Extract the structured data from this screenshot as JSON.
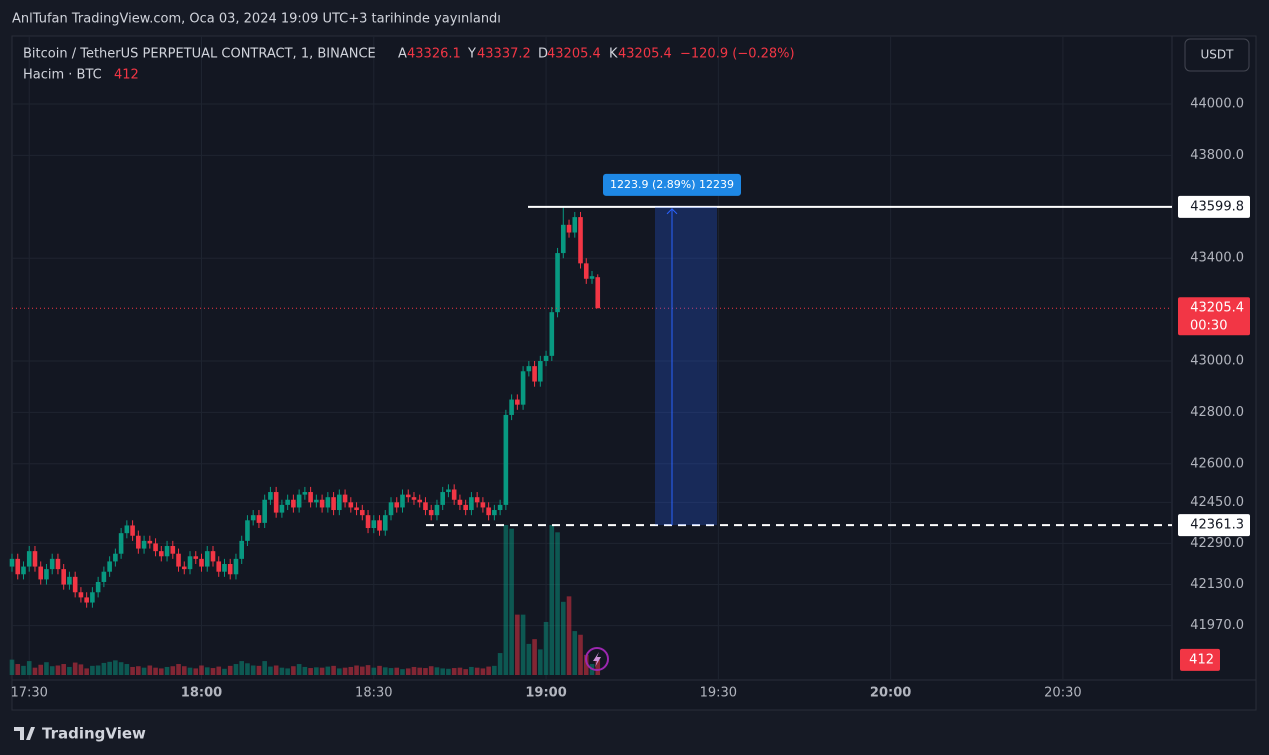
{
  "header": {
    "published": "AnlTufan TradingView.com, Oca 03, 2024 19:09 UTC+3 tarihinde yayınlandı",
    "currency": "USDT"
  },
  "chart_data": {
    "type": "candlestick",
    "title": "Bitcoin / TetherUS PERPETUAL CONTRACT, 1, BINANCE",
    "ohlc_letters": [
      "A",
      "Y",
      "D",
      "K"
    ],
    "change": "−120.9 (−0.28%)",
    "volume_label": "Hacim · BTC",
    "x": [
      "17:27",
      "17:28",
      "17:29",
      "17:30",
      "17:31",
      "17:32",
      "17:33",
      "17:34",
      "17:35",
      "17:36",
      "17:37",
      "17:38",
      "17:39",
      "17:40",
      "17:41",
      "17:42",
      "17:43",
      "17:44",
      "17:45",
      "17:46",
      "17:47",
      "17:48",
      "17:49",
      "17:50",
      "17:51",
      "17:52",
      "17:53",
      "17:54",
      "17:55",
      "17:56",
      "17:57",
      "17:58",
      "17:59",
      "18:00",
      "18:01",
      "18:02",
      "18:03",
      "18:04",
      "18:05",
      "18:06",
      "18:07",
      "18:08",
      "18:09",
      "18:10",
      "18:11",
      "18:12",
      "18:13",
      "18:14",
      "18:15",
      "18:16",
      "18:17",
      "18:18",
      "18:19",
      "18:20",
      "18:21",
      "18:22",
      "18:23",
      "18:24",
      "18:25",
      "18:26",
      "18:27",
      "18:28",
      "18:29",
      "18:30",
      "18:31",
      "18:32",
      "18:33",
      "18:34",
      "18:35",
      "18:36",
      "18:37",
      "18:38",
      "18:39",
      "18:40",
      "18:41",
      "18:42",
      "18:43",
      "18:44",
      "18:45",
      "18:46",
      "18:47",
      "18:48",
      "18:49",
      "18:50",
      "18:51",
      "18:52",
      "18:53",
      "18:54",
      "18:55",
      "18:56",
      "18:57",
      "18:58",
      "18:59",
      "19:00",
      "19:01",
      "19:02",
      "19:03",
      "19:04",
      "19:05",
      "19:06",
      "19:07",
      "19:08",
      "19:09"
    ],
    "open": [
      42200,
      42230,
      42170,
      42200,
      42260,
      42200,
      42150,
      42190,
      42230,
      42190,
      42130,
      42160,
      42100,
      42080,
      42060,
      42100,
      42140,
      42180,
      42220,
      42250,
      42330,
      42360,
      42320,
      42270,
      42300,
      42290,
      42260,
      42240,
      42280,
      42250,
      42200,
      42190,
      42240,
      42230,
      42200,
      42260,
      42220,
      42180,
      42210,
      42170,
      42230,
      42300,
      42380,
      42400,
      42370,
      42460,
      42490,
      42410,
      42440,
      42460,
      42430,
      42480,
      42490,
      42450,
      42460,
      42430,
      42470,
      42420,
      42480,
      42450,
      42430,
      42420,
      42400,
      42350,
      42380,
      42340,
      42400,
      42450,
      42430,
      42480,
      42470,
      42460,
      42450,
      42420,
      42400,
      42440,
      42490,
      42500,
      42460,
      42440,
      42420,
      42470,
      42450,
      42430,
      42400,
      42420,
      42440,
      42790,
      42850,
      42830,
      42960,
      42980,
      42920,
      43000,
      43020,
      43190,
      43420,
      43530,
      43500,
      43560,
      43380,
      43320,
      43326.1
    ],
    "high": [
      42250,
      42250,
      42220,
      42280,
      42280,
      42220,
      42210,
      42250,
      42250,
      42210,
      42180,
      42180,
      42120,
      42100,
      42120,
      42160,
      42200,
      42240,
      42270,
      42350,
      42380,
      42380,
      42340,
      42320,
      42320,
      42310,
      42280,
      42300,
      42300,
      42270,
      42220,
      42260,
      42260,
      42250,
      42280,
      42280,
      42240,
      42230,
      42230,
      42250,
      42320,
      42400,
      42420,
      42420,
      42480,
      42510,
      42510,
      42460,
      42480,
      42480,
      42500,
      42510,
      42510,
      42480,
      42480,
      42490,
      42490,
      42500,
      42500,
      42470,
      42450,
      42440,
      42420,
      42400,
      42400,
      42420,
      42470,
      42470,
      42500,
      42500,
      42490,
      42480,
      42470,
      42440,
      42460,
      42510,
      42520,
      42520,
      42480,
      42460,
      42490,
      42490,
      42470,
      42450,
      42440,
      42460,
      42810,
      42870,
      42870,
      42980,
      43000,
      43000,
      43020,
      43040,
      43210,
      43440,
      43599.8,
      43550,
      43580,
      43580,
      43400,
      43350,
      43337.2
    ],
    "low": [
      42180,
      42150,
      42150,
      42180,
      42180,
      42130,
      42130,
      42170,
      42170,
      42110,
      42110,
      42080,
      42060,
      42040,
      42040,
      42080,
      42120,
      42160,
      42200,
      42230,
      42310,
      42300,
      42250,
      42250,
      42270,
      42240,
      42220,
      42220,
      42230,
      42180,
      42170,
      42170,
      42210,
      42180,
      42180,
      42200,
      42160,
      42160,
      42150,
      42150,
      42210,
      42280,
      42360,
      42350,
      42350,
      42440,
      42390,
      42390,
      42420,
      42410,
      42410,
      42460,
      42430,
      42430,
      42410,
      42410,
      42400,
      42400,
      42430,
      42410,
      42400,
      42380,
      42330,
      42330,
      42320,
      42320,
      42380,
      42410,
      42410,
      42450,
      42440,
      42430,
      42400,
      42380,
      42380,
      42420,
      42470,
      42440,
      42420,
      42400,
      42400,
      42430,
      42410,
      42380,
      42380,
      42400,
      42420,
      42770,
      42810,
      42810,
      42940,
      42900,
      42900,
      42980,
      43000,
      43170,
      43400,
      43480,
      43480,
      43360,
      43300,
      43300,
      43205.4
    ],
    "close": [
      42230,
      42170,
      42200,
      42260,
      42200,
      42150,
      42190,
      42230,
      42190,
      42130,
      42160,
      42100,
      42080,
      42060,
      42100,
      42140,
      42180,
      42220,
      42250,
      42330,
      42360,
      42320,
      42270,
      42300,
      42290,
      42260,
      42240,
      42280,
      42250,
      42200,
      42190,
      42240,
      42230,
      42200,
      42260,
      42220,
      42180,
      42210,
      42170,
      42230,
      42300,
      42380,
      42400,
      42370,
      42460,
      42490,
      42410,
      42440,
      42460,
      42430,
      42480,
      42490,
      42450,
      42460,
      42430,
      42470,
      42420,
      42480,
      42450,
      42430,
      42420,
      42400,
      42350,
      42380,
      42340,
      42400,
      42450,
      42430,
      42480,
      42470,
      42460,
      42450,
      42420,
      42400,
      42440,
      42490,
      42500,
      42460,
      42440,
      42420,
      42470,
      42450,
      42430,
      42400,
      42420,
      42440,
      42790,
      42850,
      42830,
      42960,
      42980,
      42920,
      43000,
      43020,
      43190,
      43420,
      43530,
      43500,
      43560,
      43380,
      43320,
      43330,
      43205.4
    ],
    "volume": [
      420,
      300,
      250,
      380,
      200,
      280,
      350,
      240,
      260,
      300,
      220,
      340,
      290,
      180,
      250,
      260,
      330,
      360,
      400,
      350,
      300,
      220,
      240,
      200,
      260,
      200,
      180,
      220,
      240,
      300,
      240,
      200,
      180,
      260,
      210,
      190,
      230,
      170,
      250,
      300,
      380,
      320,
      260,
      250,
      380,
      230,
      260,
      200,
      180,
      240,
      300,
      220,
      190,
      210,
      200,
      230,
      250,
      180,
      200,
      220,
      260,
      230,
      270,
      200,
      250,
      210,
      190,
      200,
      160,
      180,
      220,
      200,
      190,
      240,
      210,
      180,
      170,
      190,
      200,
      160,
      220,
      200,
      180,
      230,
      250,
      600,
      4100,
      4000,
      1650,
      1650,
      850,
      980,
      700,
      1450,
      4100,
      3900,
      2000,
      2150,
      1200,
      1100,
      550,
      300,
      412
    ],
    "up_color": "#089981",
    "down_color": "#f23645",
    "xlim": [
      "17:27",
      "20:49"
    ],
    "xticks": [
      "17:30",
      "18:00",
      "18:30",
      "19:00",
      "19:30",
      "20:00",
      "20:30"
    ],
    "ylim": [
      41778,
      44257
    ],
    "yticks": [
      {
        "value": 44000,
        "label": "44000.0"
      },
      {
        "value": 43800,
        "label": "43800.0"
      },
      {
        "value": 43400,
        "label": "43400.0"
      },
      {
        "value": 43000,
        "label": "43000.0"
      },
      {
        "value": 42800,
        "label": "42800.0"
      },
      {
        "value": 42600,
        "label": "42600.0"
      },
      {
        "value": 42450,
        "label": "42450.0"
      },
      {
        "value": 42290,
        "label": "42290.0"
      },
      {
        "value": 42130,
        "label": "42130.0"
      },
      {
        "value": 41970,
        "label": "41970.0"
      }
    ],
    "grid": true,
    "annotations": {
      "base_line": 42361.3,
      "countdown": "00:30",
      "measure": "1223.9 (2.89%) 12239"
    }
  },
  "footer": {
    "brand": "TradingView"
  }
}
